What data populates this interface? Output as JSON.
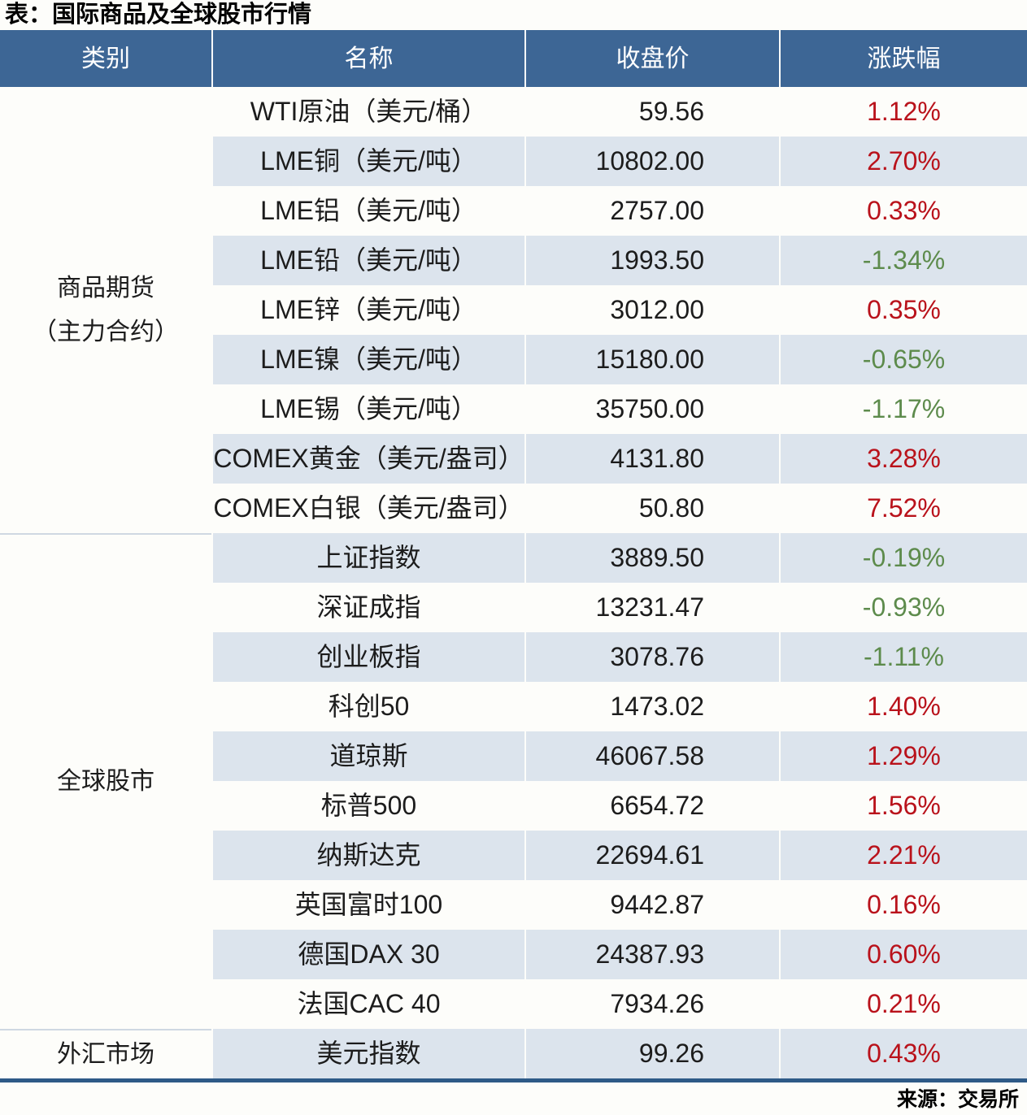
{
  "title": "表：国际商品及全球股市行情",
  "source": "来源：交易所",
  "colors": {
    "header_bg": "#3d6695",
    "stripe_bg": "#dce4ed",
    "row_bg": "#fdfdfa",
    "up_red": "#b9121b",
    "down_green": "#5d8b4c",
    "text": "#1c1c1c",
    "bottom_border": "#2e5a87",
    "section_divider": "#cfd8e2"
  },
  "chart_data": {
    "type": "table",
    "columns": [
      "类别",
      "名称",
      "收盘价",
      "涨跌幅"
    ],
    "sections": [
      {
        "category_lines": [
          "商品期货",
          "（主力合约）"
        ],
        "rows": [
          {
            "name": "WTI原油（美元/桶）",
            "close": "59.56",
            "change": "1.12%",
            "direction": "up"
          },
          {
            "name": "LME铜（美元/吨）",
            "close": "10802.00",
            "change": "2.70%",
            "direction": "up"
          },
          {
            "name": "LME铝（美元/吨）",
            "close": "2757.00",
            "change": "0.33%",
            "direction": "up"
          },
          {
            "name": "LME铅（美元/吨）",
            "close": "1993.50",
            "change": "-1.34%",
            "direction": "down"
          },
          {
            "name": "LME锌（美元/吨）",
            "close": "3012.00",
            "change": "0.35%",
            "direction": "up"
          },
          {
            "name": "LME镍（美元/吨）",
            "close": "15180.00",
            "change": "-0.65%",
            "direction": "down"
          },
          {
            "name": "LME锡（美元/吨）",
            "close": "35750.00",
            "change": "-1.17%",
            "direction": "down"
          },
          {
            "name": "COMEX黄金（美元/盎司）",
            "close": "4131.80",
            "change": "3.28%",
            "direction": "up"
          },
          {
            "name": "COMEX白银（美元/盎司）",
            "close": "50.80",
            "change": "7.52%",
            "direction": "up"
          }
        ]
      },
      {
        "category_lines": [
          "全球股市"
        ],
        "rows": [
          {
            "name": "上证指数",
            "close": "3889.50",
            "change": "-0.19%",
            "direction": "down"
          },
          {
            "name": "深证成指",
            "close": "13231.47",
            "change": "-0.93%",
            "direction": "down"
          },
          {
            "name": "创业板指",
            "close": "3078.76",
            "change": "-1.11%",
            "direction": "down"
          },
          {
            "name": "科创50",
            "close": "1473.02",
            "change": "1.40%",
            "direction": "up"
          },
          {
            "name": "道琼斯",
            "close": "46067.58",
            "change": "1.29%",
            "direction": "up"
          },
          {
            "name": "标普500",
            "close": "6654.72",
            "change": "1.56%",
            "direction": "up"
          },
          {
            "name": "纳斯达克",
            "close": "22694.61",
            "change": "2.21%",
            "direction": "up"
          },
          {
            "name": "英国富时100",
            "close": "9442.87",
            "change": "0.16%",
            "direction": "up"
          },
          {
            "name": "德国DAX 30",
            "close": "24387.93",
            "change": "0.60%",
            "direction": "up"
          },
          {
            "name": "法国CAC 40",
            "close": "7934.26",
            "change": "0.21%",
            "direction": "up"
          }
        ]
      },
      {
        "category_lines": [
          "外汇市场"
        ],
        "rows": [
          {
            "name": "美元指数",
            "close": "99.26",
            "change": "0.43%",
            "direction": "up"
          }
        ]
      }
    ]
  }
}
